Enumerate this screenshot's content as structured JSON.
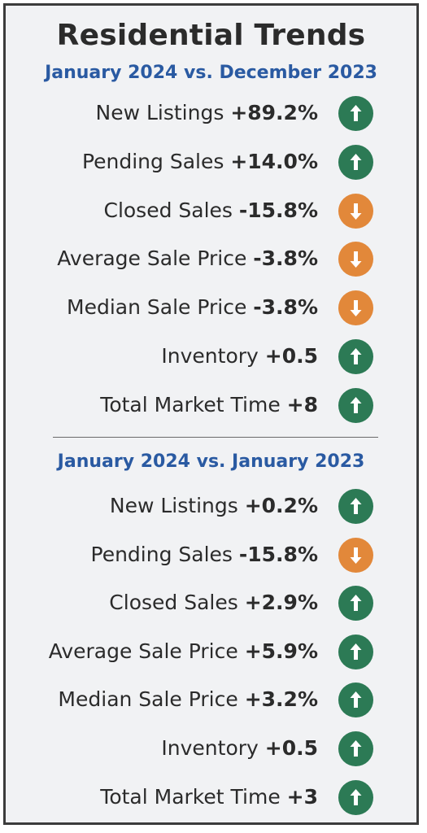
{
  "title": "Residential Trends",
  "sections": [
    {
      "subtitle": "January 2024 vs. December 2023",
      "rows": [
        {
          "label": "New Listings",
          "value": "+89.2%",
          "direction": "up"
        },
        {
          "label": "Pending Sales",
          "value": "+14.0%",
          "direction": "up"
        },
        {
          "label": "Closed Sales",
          "value": "-15.8%",
          "direction": "down"
        },
        {
          "label": "Average Sale Price",
          "value": "-3.8%",
          "direction": "down"
        },
        {
          "label": "Median Sale Price",
          "value": "-3.8%",
          "direction": "down"
        },
        {
          "label": "Inventory",
          "value": "+0.5",
          "direction": "up"
        },
        {
          "label": "Total Market Time",
          "value": "+8",
          "direction": "up"
        }
      ]
    },
    {
      "subtitle": "January 2024 vs. January 2023",
      "rows": [
        {
          "label": "New Listings",
          "value": "+0.2%",
          "direction": "up"
        },
        {
          "label": "Pending Sales",
          "value": "-15.8%",
          "direction": "down"
        },
        {
          "label": "Closed Sales",
          "value": "+2.9%",
          "direction": "up"
        },
        {
          "label": "Average Sale Price",
          "value": "+5.9%",
          "direction": "up"
        },
        {
          "label": "Median Sale Price",
          "value": "+3.2%",
          "direction": "up"
        },
        {
          "label": "Inventory",
          "value": "+0.5",
          "direction": "up"
        },
        {
          "label": "Total Market Time",
          "value": "+3",
          "direction": "up"
        }
      ]
    }
  ],
  "colors": {
    "up": "#2c7a55",
    "down": "#e2883a",
    "subtitle": "#2a5aa2"
  },
  "icons": {
    "up": "arrow-up-icon",
    "down": "arrow-down-icon"
  }
}
